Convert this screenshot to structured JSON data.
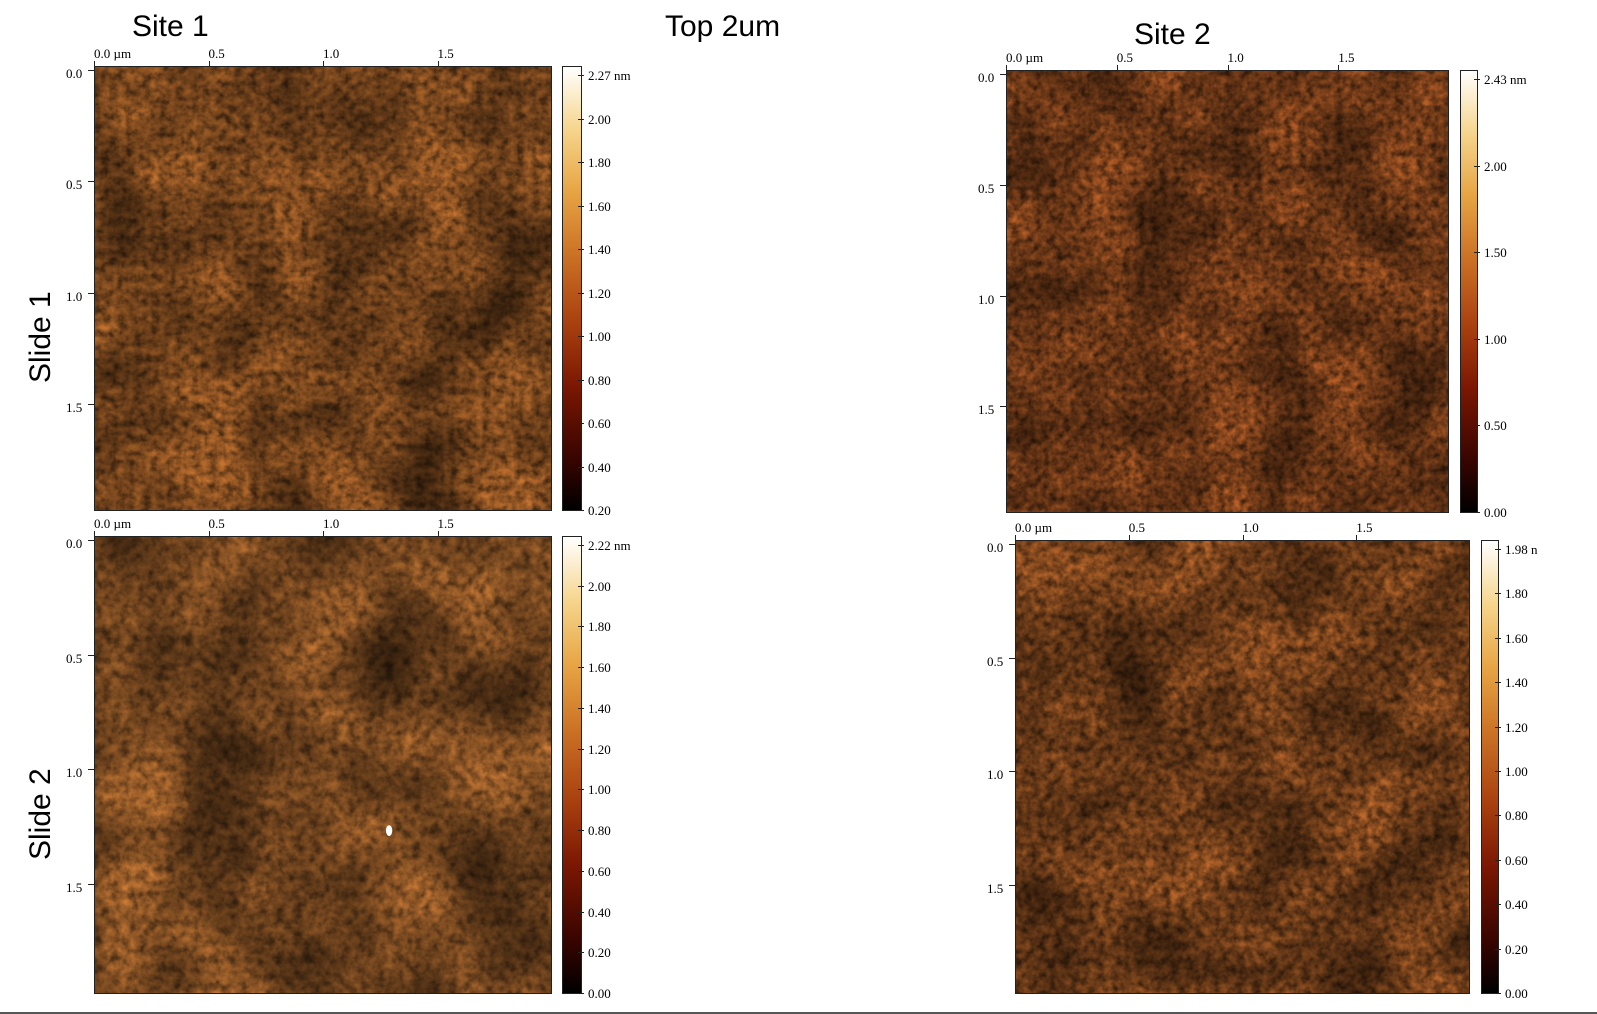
{
  "labels": {
    "title": "Top 2um",
    "site1": "Site 1",
    "site2": "Site 2",
    "slide1": "Slide 1",
    "slide2": "Slide 2"
  },
  "colors": {
    "dark": "#3a0500",
    "mid": "#b5521a",
    "light": "#f3cf85"
  },
  "panels": {
    "p11": {
      "x_ticks": [
        "0.0 µm",
        "0.5",
        "1.0",
        "1.5"
      ],
      "y_ticks": [
        "0.0",
        "0.5",
        "1.0",
        "1.5"
      ],
      "cbar_ticks": [
        "2.27 nm",
        "2.00",
        "1.80",
        "1.60",
        "1.40",
        "1.20",
        "1.00",
        "0.80",
        "0.60",
        "0.40",
        "0.20"
      ]
    },
    "p12": {
      "x_ticks": [
        "0.0 µm",
        "0.5",
        "1.0",
        "1.5"
      ],
      "y_ticks": [
        "0.0",
        "0.5",
        "1.0",
        "1.5"
      ],
      "cbar_ticks": [
        "2.43 nm",
        "2.00",
        "1.50",
        "1.00",
        "0.50",
        "0.00"
      ]
    },
    "p21": {
      "x_ticks": [
        "0.0 µm",
        "0.5",
        "1.0",
        "1.5"
      ],
      "y_ticks": [
        "0.0",
        "0.5",
        "1.0",
        "1.5"
      ],
      "cbar_ticks": [
        "2.22 nm",
        "2.00",
        "1.80",
        "1.60",
        "1.40",
        "1.20",
        "1.00",
        "0.80",
        "0.60",
        "0.40",
        "0.20",
        "0.00"
      ]
    },
    "p22": {
      "x_ticks": [
        "0.0 µm",
        "0.5",
        "1.0",
        "1.5"
      ],
      "y_ticks": [
        "0.0",
        "0.5",
        "1.0",
        "1.5"
      ],
      "cbar_ticks": [
        "1.98 n",
        "1.80",
        "1.60",
        "1.40",
        "1.20",
        "1.00",
        "0.80",
        "0.60",
        "0.40",
        "0.20",
        "0.00"
      ]
    }
  }
}
